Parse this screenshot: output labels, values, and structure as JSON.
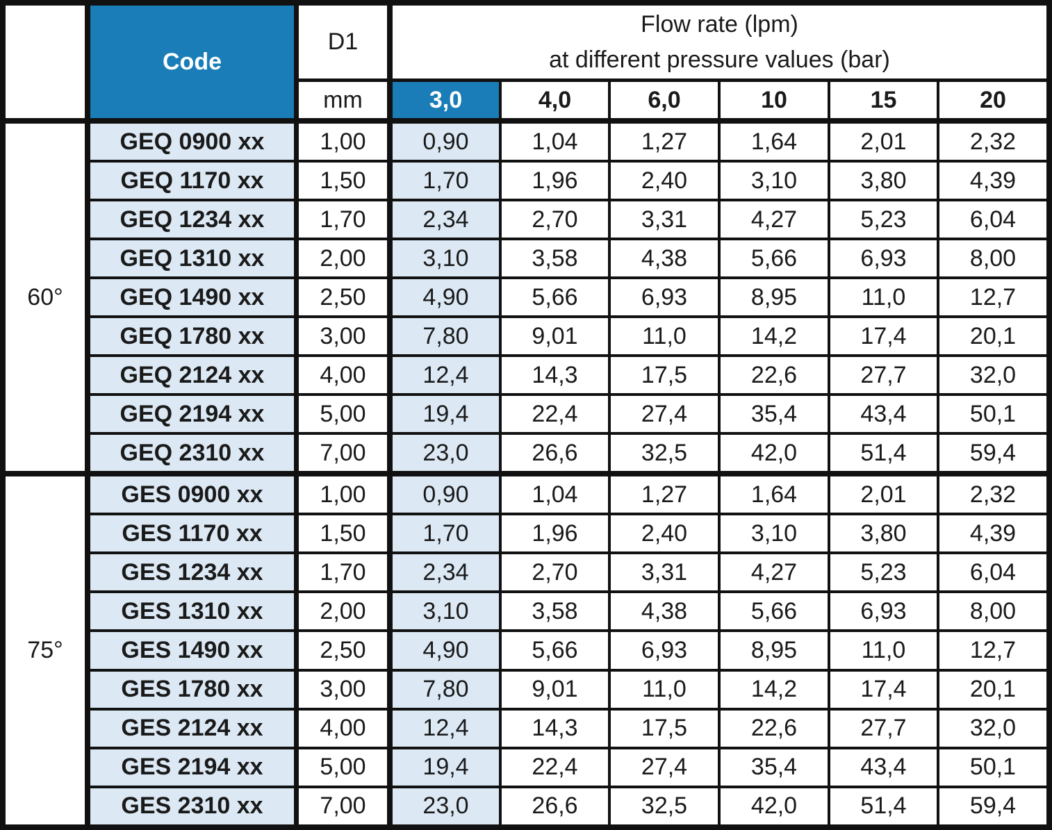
{
  "header": {
    "code": "Code",
    "d1": "D1",
    "d1_unit": "mm",
    "flow_title": "Flow rate (lpm)",
    "flow_subtitle": "at different pressure values (bar)",
    "pressures": [
      "3,0",
      "4,0",
      "6,0",
      "10",
      "15",
      "20"
    ]
  },
  "groups": [
    {
      "angle": "60°",
      "rows": [
        [
          "GEQ 0900 xx",
          "1,00",
          "0,90",
          "1,04",
          "1,27",
          "1,64",
          "2,01",
          "2,32"
        ],
        [
          "GEQ 1170 xx",
          "1,50",
          "1,70",
          "1,96",
          "2,40",
          "3,10",
          "3,80",
          "4,39"
        ],
        [
          "GEQ 1234 xx",
          "1,70",
          "2,34",
          "2,70",
          "3,31",
          "4,27",
          "5,23",
          "6,04"
        ],
        [
          "GEQ 1310 xx",
          "2,00",
          "3,10",
          "3,58",
          "4,38",
          "5,66",
          "6,93",
          "8,00"
        ],
        [
          "GEQ 1490 xx",
          "2,50",
          "4,90",
          "5,66",
          "6,93",
          "8,95",
          "11,0",
          "12,7"
        ],
        [
          "GEQ 1780 xx",
          "3,00",
          "7,80",
          "9,01",
          "11,0",
          "14,2",
          "17,4",
          "20,1"
        ],
        [
          "GEQ 2124 xx",
          "4,00",
          "12,4",
          "14,3",
          "17,5",
          "22,6",
          "27,7",
          "32,0"
        ],
        [
          "GEQ 2194 xx",
          "5,00",
          "19,4",
          "22,4",
          "27,4",
          "35,4",
          "43,4",
          "50,1"
        ],
        [
          "GEQ 2310 xx",
          "7,00",
          "23,0",
          "26,6",
          "32,5",
          "42,0",
          "51,4",
          "59,4"
        ]
      ]
    },
    {
      "angle": "75°",
      "rows": [
        [
          "GES 0900 xx",
          "1,00",
          "0,90",
          "1,04",
          "1,27",
          "1,64",
          "2,01",
          "2,32"
        ],
        [
          "GES 1170 xx",
          "1,50",
          "1,70",
          "1,96",
          "2,40",
          "3,10",
          "3,80",
          "4,39"
        ],
        [
          "GES 1234 xx",
          "1,70",
          "2,34",
          "2,70",
          "3,31",
          "4,27",
          "5,23",
          "6,04"
        ],
        [
          "GES 1310 xx",
          "2,00",
          "3,10",
          "3,58",
          "4,38",
          "5,66",
          "6,93",
          "8,00"
        ],
        [
          "GES 1490 xx",
          "2,50",
          "4,90",
          "5,66",
          "6,93",
          "8,95",
          "11,0",
          "12,7"
        ],
        [
          "GES 1780 xx",
          "3,00",
          "7,80",
          "9,01",
          "11,0",
          "14,2",
          "17,4",
          "20,1"
        ],
        [
          "GES 2124 xx",
          "4,00",
          "12,4",
          "14,3",
          "17,5",
          "22,6",
          "27,7",
          "32,0"
        ],
        [
          "GES 2194 xx",
          "5,00",
          "19,4",
          "22,4",
          "27,4",
          "35,4",
          "43,4",
          "50,1"
        ],
        [
          "GES 2310 xx",
          "7,00",
          "23,0",
          "26,6",
          "32,5",
          "42,0",
          "51,4",
          "59,4"
        ]
      ]
    }
  ]
}
